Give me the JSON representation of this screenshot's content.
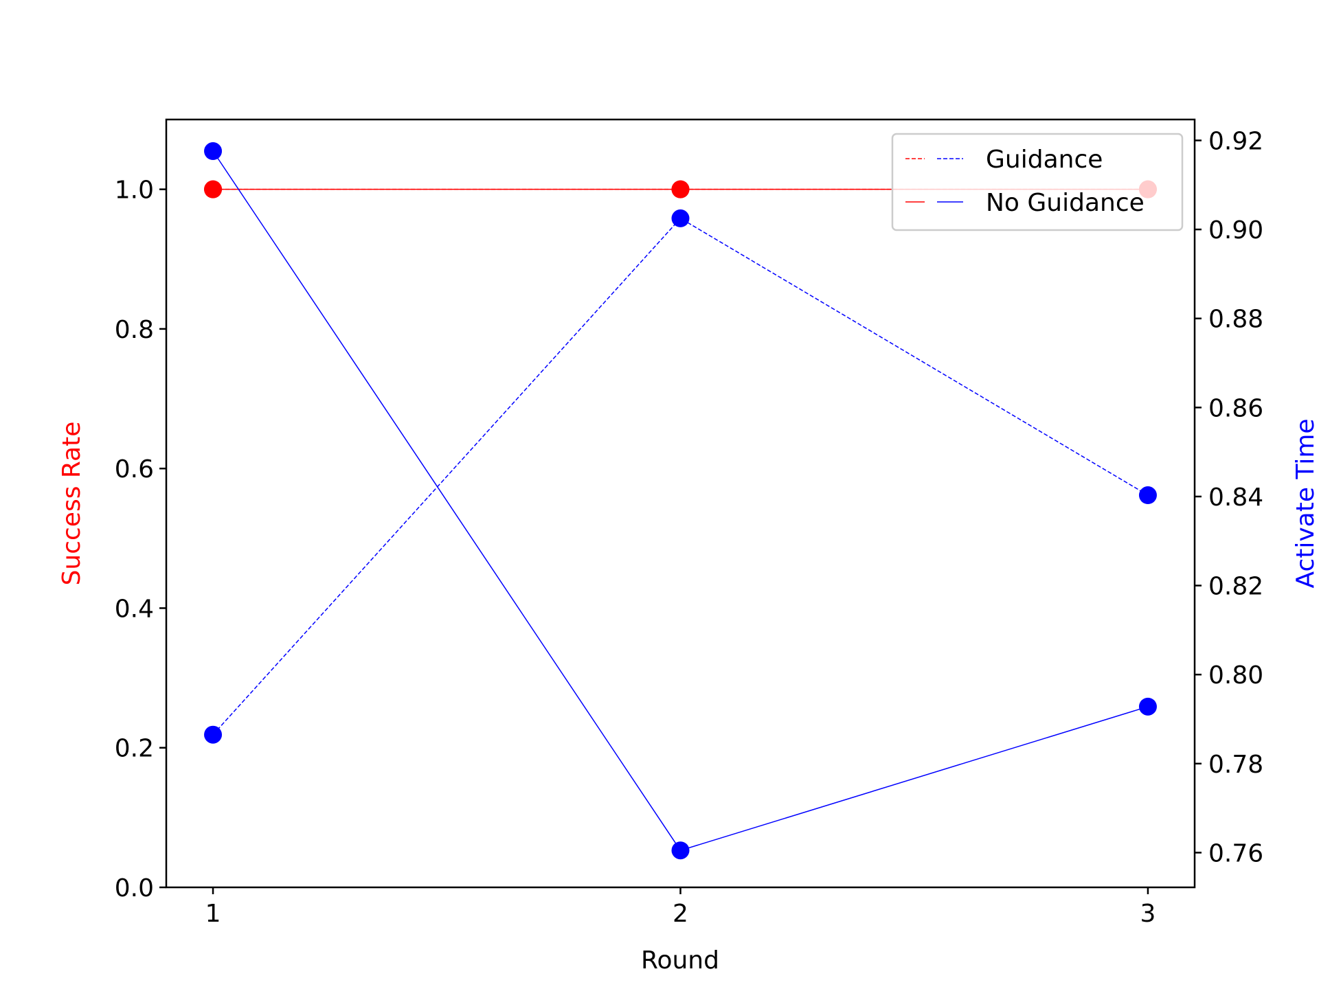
{
  "chart_data": {
    "type": "line",
    "title": "",
    "xlabel": "Round",
    "ylabel_left": "Success Rate",
    "ylabel_right": "Activate Time",
    "x": [
      1,
      2,
      3
    ],
    "x_ticks": [
      "1",
      "2",
      "3"
    ],
    "xlim": [
      0.9,
      3.1
    ],
    "ylim_left": [
      0.0,
      1.1
    ],
    "ylim_right": [
      0.7522,
      0.9247
    ],
    "left_ticks": [
      "0.0",
      "0.2",
      "0.4",
      "0.6",
      "0.8",
      "1.0"
    ],
    "right_ticks": [
      "0.76",
      "0.78",
      "0.80",
      "0.82",
      "0.84",
      "0.86",
      "0.88",
      "0.90",
      "0.92"
    ],
    "legend_position": "top-right",
    "colors": {
      "success": "#ff0000",
      "time": "#0000ff",
      "axis_left_label": "#ff0000",
      "axis_right_label": "#0000ff"
    },
    "series": [
      {
        "name": "Guidance",
        "metric": "Success Rate",
        "axis": "left",
        "style": "dashed",
        "color": "#ff0000",
        "values": [
          1.0,
          1.0,
          1.0
        ]
      },
      {
        "name": "No Guidance",
        "metric": "Success Rate",
        "axis": "left",
        "style": "solid",
        "color": "#ff0000",
        "values": [
          1.0,
          1.0,
          1.0
        ]
      },
      {
        "name": "Guidance",
        "metric": "Activate Time",
        "axis": "right",
        "style": "dashed",
        "color": "#0000ff",
        "values": [
          0.7865,
          0.9025,
          0.8403
        ]
      },
      {
        "name": "No Guidance",
        "metric": "Activate Time",
        "axis": "right",
        "style": "solid",
        "color": "#0000ff",
        "values": [
          0.9176,
          0.7605,
          0.7928
        ]
      }
    ],
    "legend": [
      {
        "label": "Guidance",
        "style": "dashed"
      },
      {
        "label": "No Guidance",
        "style": "solid"
      }
    ]
  }
}
